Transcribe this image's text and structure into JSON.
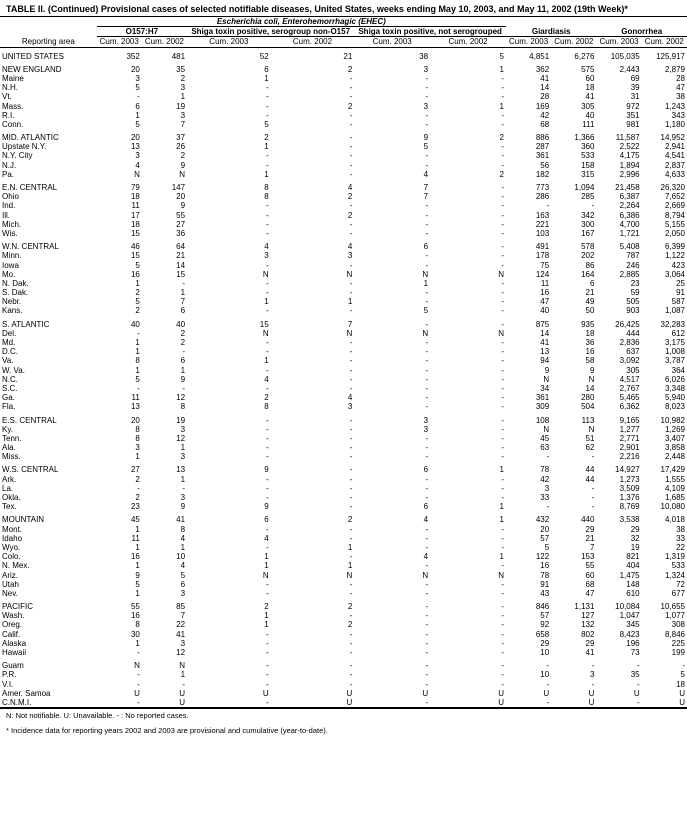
{
  "title": "TABLE II. (Continued) Provisional cases of selected notifiable diseases, United States, weeks ending May 10, 2003, and May 11, 2002 (19th Week)*",
  "headers": {
    "ehec_group": "Escherichia coli, Enterohemorrhagic (EHEC)",
    "o157": "O157:H7",
    "shiga_pos": "Shiga toxin positive, serogroup non-O157",
    "shiga_not": "Shiga toxin positive, not serogrouped",
    "giardiasis": "Giardiasis",
    "gonorrhea": "Gonorrhea",
    "reporting_area": "Reporting area",
    "cum2003": "Cum. 2003",
    "cum2002": "Cum. 2002"
  },
  "footnote1": "N: Not notifiable.     U: Unavailable.     - : No reported cases.",
  "footnote2": "* Incidence data for reporting years 2002 and 2003 are provisional and cumulative (year-to-date).",
  "rows": [
    {
      "area": "UNITED STATES",
      "v": [
        "352",
        "481",
        "52",
        "21",
        "38",
        "5",
        "4,851",
        "6,276",
        "105,035",
        "125,917"
      ],
      "bold": false,
      "spacer": true
    },
    {
      "area": "NEW ENGLAND",
      "v": [
        "20",
        "35",
        "6",
        "2",
        "3",
        "1",
        "362",
        "575",
        "2,443",
        "2,879"
      ],
      "spacer": true
    },
    {
      "area": "Maine",
      "v": [
        "3",
        "2",
        "1",
        "-",
        "-",
        "-",
        "41",
        "60",
        "69",
        "28"
      ]
    },
    {
      "area": "N.H.",
      "v": [
        "5",
        "3",
        "-",
        "-",
        "-",
        "-",
        "14",
        "18",
        "39",
        "47"
      ]
    },
    {
      "area": "Vt.",
      "v": [
        "-",
        "1",
        "-",
        "-",
        "-",
        "-",
        "28",
        "41",
        "31",
        "38"
      ]
    },
    {
      "area": "Mass.",
      "v": [
        "6",
        "19",
        "-",
        "2",
        "3",
        "1",
        "169",
        "305",
        "972",
        "1,243"
      ]
    },
    {
      "area": "R.I.",
      "v": [
        "1",
        "3",
        "-",
        "-",
        "-",
        "-",
        "42",
        "40",
        "351",
        "343"
      ]
    },
    {
      "area": "Conn.",
      "v": [
        "5",
        "7",
        "5",
        "-",
        "-",
        "-",
        "68",
        "111",
        "981",
        "1,180"
      ]
    },
    {
      "area": "MID. ATLANTIC",
      "v": [
        "20",
        "37",
        "2",
        "-",
        "9",
        "2",
        "886",
        "1,366",
        "11,587",
        "14,952"
      ],
      "spacer": true
    },
    {
      "area": "Upstate N.Y.",
      "v": [
        "13",
        "26",
        "1",
        "-",
        "5",
        "-",
        "287",
        "360",
        "2,522",
        "2,941"
      ]
    },
    {
      "area": "N.Y. City",
      "v": [
        "3",
        "2",
        "-",
        "-",
        "-",
        "-",
        "361",
        "533",
        "4,175",
        "4,541"
      ]
    },
    {
      "area": "N.J.",
      "v": [
        "4",
        "9",
        "-",
        "-",
        "-",
        "-",
        "56",
        "158",
        "1,894",
        "2,837"
      ]
    },
    {
      "area": "Pa.",
      "v": [
        "N",
        "N",
        "1",
        "-",
        "4",
        "2",
        "182",
        "315",
        "2,996",
        "4,633"
      ]
    },
    {
      "area": "E.N. CENTRAL",
      "v": [
        "79",
        "147",
        "8",
        "4",
        "7",
        "-",
        "773",
        "1,094",
        "21,458",
        "26,320"
      ],
      "spacer": true
    },
    {
      "area": "Ohio",
      "v": [
        "18",
        "20",
        "8",
        "2",
        "7",
        "-",
        "286",
        "285",
        "6,387",
        "7,652"
      ]
    },
    {
      "area": "Ind.",
      "v": [
        "11",
        "9",
        "-",
        "-",
        "-",
        "-",
        "-",
        "-",
        "2,264",
        "2,669"
      ]
    },
    {
      "area": "Ill.",
      "v": [
        "17",
        "55",
        "-",
        "2",
        "-",
        "-",
        "163",
        "342",
        "6,386",
        "8,794"
      ]
    },
    {
      "area": "Mich.",
      "v": [
        "18",
        "27",
        "-",
        "-",
        "-",
        "-",
        "221",
        "300",
        "4,700",
        "5,155"
      ]
    },
    {
      "area": "Wis.",
      "v": [
        "15",
        "36",
        "-",
        "-",
        "-",
        "-",
        "103",
        "167",
        "1,721",
        "2,050"
      ]
    },
    {
      "area": "W.N. CENTRAL",
      "v": [
        "46",
        "64",
        "4",
        "4",
        "6",
        "-",
        "491",
        "578",
        "5,408",
        "6,399"
      ],
      "spacer": true
    },
    {
      "area": "Minn.",
      "v": [
        "15",
        "21",
        "3",
        "3",
        "-",
        "-",
        "178",
        "202",
        "787",
        "1,122"
      ]
    },
    {
      "area": "Iowa",
      "v": [
        "5",
        "14",
        "-",
        "-",
        "-",
        "-",
        "75",
        "86",
        "246",
        "423"
      ]
    },
    {
      "area": "Mo.",
      "v": [
        "16",
        "15",
        "N",
        "N",
        "N",
        "N",
        "124",
        "164",
        "2,885",
        "3,064"
      ]
    },
    {
      "area": "N. Dak.",
      "v": [
        "1",
        "-",
        "-",
        "-",
        "1",
        "-",
        "11",
        "6",
        "23",
        "25"
      ]
    },
    {
      "area": "S. Dak.",
      "v": [
        "2",
        "1",
        "-",
        "-",
        "-",
        "-",
        "16",
        "21",
        "59",
        "91"
      ]
    },
    {
      "area": "Nebr.",
      "v": [
        "5",
        "7",
        "1",
        "1",
        "-",
        "-",
        "47",
        "49",
        "505",
        "587"
      ]
    },
    {
      "area": "Kans.",
      "v": [
        "2",
        "6",
        "-",
        "-",
        "5",
        "-",
        "40",
        "50",
        "903",
        "1,087"
      ]
    },
    {
      "area": "S. ATLANTIC",
      "v": [
        "40",
        "40",
        "15",
        "7",
        "-",
        "-",
        "875",
        "935",
        "26,425",
        "32,283"
      ],
      "spacer": true
    },
    {
      "area": "Del.",
      "v": [
        "-",
        "2",
        "N",
        "N",
        "N",
        "N",
        "14",
        "18",
        "444",
        "612"
      ]
    },
    {
      "area": "Md.",
      "v": [
        "1",
        "2",
        "-",
        "-",
        "-",
        "-",
        "41",
        "36",
        "2,836",
        "3,175"
      ]
    },
    {
      "area": "D.C.",
      "v": [
        "1",
        "-",
        "-",
        "-",
        "-",
        "-",
        "13",
        "16",
        "637",
        "1,008"
      ]
    },
    {
      "area": "Va.",
      "v": [
        "8",
        "6",
        "1",
        "-",
        "-",
        "-",
        "94",
        "58",
        "3,092",
        "3,787"
      ]
    },
    {
      "area": "W. Va.",
      "v": [
        "1",
        "1",
        "-",
        "-",
        "-",
        "-",
        "9",
        "9",
        "305",
        "364"
      ]
    },
    {
      "area": "N.C.",
      "v": [
        "5",
        "9",
        "4",
        "-",
        "-",
        "-",
        "N",
        "N",
        "4,517",
        "6,026"
      ]
    },
    {
      "area": "S.C.",
      "v": [
        "-",
        "-",
        "-",
        "-",
        "-",
        "-",
        "34",
        "14",
        "2,767",
        "3,348"
      ]
    },
    {
      "area": "Ga.",
      "v": [
        "11",
        "12",
        "2",
        "4",
        "-",
        "-",
        "361",
        "280",
        "5,465",
        "5,940"
      ]
    },
    {
      "area": "Fla.",
      "v": [
        "13",
        "8",
        "8",
        "3",
        "-",
        "-",
        "309",
        "504",
        "6,362",
        "8,023"
      ]
    },
    {
      "area": "E.S. CENTRAL",
      "v": [
        "20",
        "19",
        "-",
        "-",
        "3",
        "-",
        "108",
        "113",
        "9,165",
        "10,982"
      ],
      "spacer": true
    },
    {
      "area": "Ky.",
      "v": [
        "8",
        "3",
        "-",
        "-",
        "3",
        "-",
        "N",
        "N",
        "1,277",
        "1,269"
      ]
    },
    {
      "area": "Tenn.",
      "v": [
        "8",
        "12",
        "-",
        "-",
        "-",
        "-",
        "45",
        "51",
        "2,771",
        "3,407"
      ]
    },
    {
      "area": "Ala.",
      "v": [
        "3",
        "1",
        "-",
        "-",
        "-",
        "-",
        "63",
        "62",
        "2,901",
        "3,858"
      ]
    },
    {
      "area": "Miss.",
      "v": [
        "1",
        "3",
        "-",
        "-",
        "-",
        "-",
        "-",
        "-",
        "2,216",
        "2,448"
      ]
    },
    {
      "area": "W.S. CENTRAL",
      "v": [
        "27",
        "13",
        "9",
        "-",
        "6",
        "1",
        "78",
        "44",
        "14,927",
        "17,429"
      ],
      "spacer": true
    },
    {
      "area": "Ark.",
      "v": [
        "2",
        "1",
        "-",
        "-",
        "-",
        "-",
        "42",
        "44",
        "1,273",
        "1,555"
      ]
    },
    {
      "area": "La.",
      "v": [
        "-",
        "-",
        "-",
        "-",
        "-",
        "-",
        "3",
        "-",
        "3,509",
        "4,109"
      ]
    },
    {
      "area": "Okla.",
      "v": [
        "2",
        "3",
        "-",
        "-",
        "-",
        "-",
        "33",
        "-",
        "1,376",
        "1,685"
      ]
    },
    {
      "area": "Tex.",
      "v": [
        "23",
        "9",
        "9",
        "-",
        "6",
        "1",
        "-",
        "-",
        "8,769",
        "10,080"
      ]
    },
    {
      "area": "MOUNTAIN",
      "v": [
        "45",
        "41",
        "6",
        "2",
        "4",
        "1",
        "432",
        "440",
        "3,538",
        "4,018"
      ],
      "spacer": true
    },
    {
      "area": "Mont.",
      "v": [
        "1",
        "8",
        "-",
        "-",
        "-",
        "-",
        "20",
        "29",
        "29",
        "38"
      ]
    },
    {
      "area": "Idaho",
      "v": [
        "11",
        "4",
        "4",
        "-",
        "-",
        "-",
        "57",
        "21",
        "32",
        "33"
      ]
    },
    {
      "area": "Wyo.",
      "v": [
        "1",
        "1",
        "-",
        "1",
        "-",
        "-",
        "5",
        "7",
        "19",
        "22"
      ]
    },
    {
      "area": "Colo.",
      "v": [
        "16",
        "10",
        "1",
        "-",
        "4",
        "1",
        "122",
        "153",
        "821",
        "1,319"
      ]
    },
    {
      "area": "N. Mex.",
      "v": [
        "1",
        "4",
        "1",
        "1",
        "-",
        "-",
        "16",
        "55",
        "404",
        "533"
      ]
    },
    {
      "area": "Ariz.",
      "v": [
        "9",
        "5",
        "N",
        "N",
        "N",
        "N",
        "78",
        "60",
        "1,475",
        "1,324"
      ]
    },
    {
      "area": "Utah",
      "v": [
        "5",
        "6",
        "-",
        "-",
        "-",
        "-",
        "91",
        "68",
        "148",
        "72"
      ]
    },
    {
      "area": "Nev.",
      "v": [
        "1",
        "3",
        "-",
        "-",
        "-",
        "-",
        "43",
        "47",
        "610",
        "677"
      ]
    },
    {
      "area": "PACIFIC",
      "v": [
        "55",
        "85",
        "2",
        "2",
        "-",
        "-",
        "846",
        "1,131",
        "10,084",
        "10,655"
      ],
      "spacer": true
    },
    {
      "area": "Wash.",
      "v": [
        "16",
        "7",
        "1",
        "-",
        "-",
        "-",
        "57",
        "127",
        "1,047",
        "1,077"
      ]
    },
    {
      "area": "Oreg.",
      "v": [
        "8",
        "22",
        "1",
        "2",
        "-",
        "-",
        "92",
        "132",
        "345",
        "308"
      ]
    },
    {
      "area": "Calif.",
      "v": [
        "30",
        "41",
        "-",
        "-",
        "-",
        "-",
        "658",
        "802",
        "8,423",
        "8,846"
      ]
    },
    {
      "area": "Alaska",
      "v": [
        "1",
        "3",
        "-",
        "-",
        "-",
        "-",
        "29",
        "29",
        "196",
        "225"
      ]
    },
    {
      "area": "Hawaii",
      "v": [
        "-",
        "12",
        "-",
        "-",
        "-",
        "-",
        "10",
        "41",
        "73",
        "199"
      ]
    },
    {
      "area": "Guam",
      "v": [
        "N",
        "N",
        "-",
        "-",
        "-",
        "-",
        "-",
        "-",
        "-",
        "-"
      ],
      "spacer": true
    },
    {
      "area": "P.R.",
      "v": [
        "-",
        "1",
        "-",
        "-",
        "-",
        "-",
        "10",
        "3",
        "35",
        "5"
      ]
    },
    {
      "area": "V.I.",
      "v": [
        "-",
        "-",
        "-",
        "-",
        "-",
        "-",
        "-",
        "-",
        "-",
        "18"
      ]
    },
    {
      "area": "Amer. Samoa",
      "v": [
        "U",
        "U",
        "U",
        "U",
        "U",
        "U",
        "U",
        "U",
        "U",
        "U"
      ]
    },
    {
      "area": "C.N.M.I.",
      "v": [
        "-",
        "U",
        "-",
        "U",
        "-",
        "U",
        "-",
        "U",
        "-",
        "U"
      ]
    }
  ]
}
